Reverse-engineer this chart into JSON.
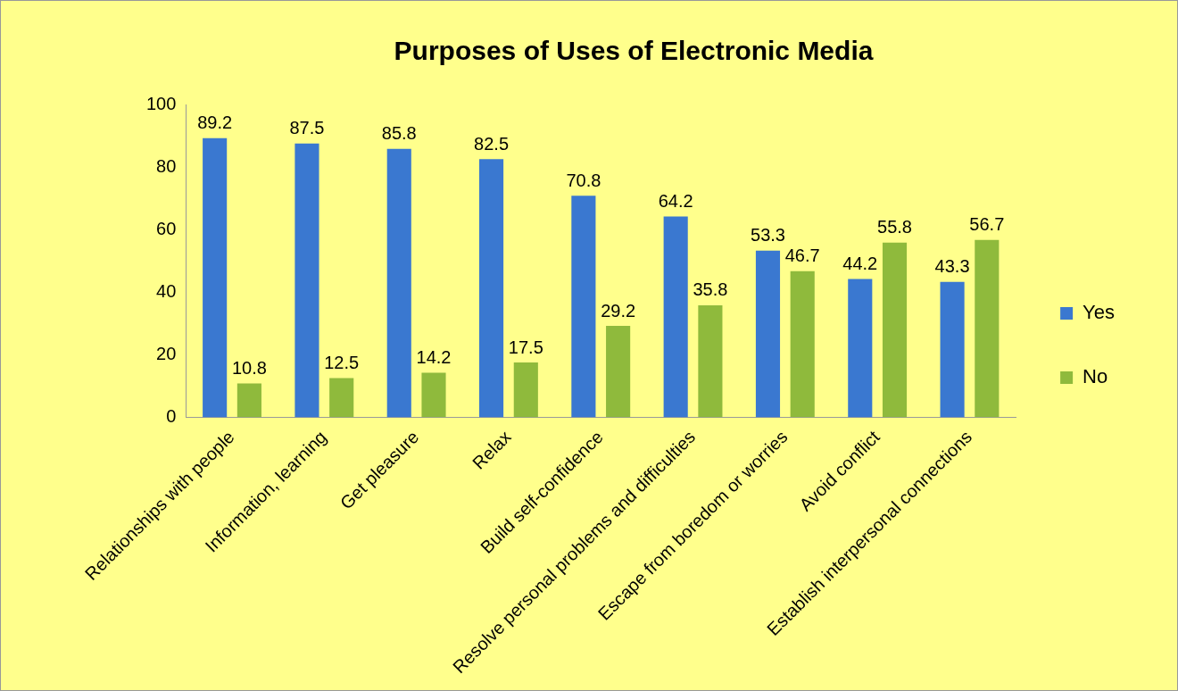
{
  "chart_data": {
    "type": "bar",
    "title": "Purposes of Uses of Electronic Media",
    "categories": [
      "Relationships with people",
      "Information, learning",
      "Get pleasure",
      "Relax",
      "Build self-confidence",
      "Resolve personal problems and difficulties",
      "Escape from boredom or worries",
      "Avoid conflict",
      "Establish interpersonal connections"
    ],
    "series": [
      {
        "name": "Yes",
        "color": "#3a78d0",
        "values": [
          89.2,
          87.5,
          85.8,
          82.5,
          70.8,
          64.2,
          53.3,
          44.2,
          43.3
        ]
      },
      {
        "name": "No",
        "color": "#8fba3c",
        "values": [
          10.8,
          12.5,
          14.2,
          17.5,
          29.2,
          35.8,
          46.7,
          55.8,
          56.7
        ]
      }
    ],
    "ylim": [
      0,
      100
    ],
    "yticks": [
      0,
      20,
      40,
      60,
      80,
      100
    ],
    "grid": false,
    "legend": "right",
    "data_labels": true
  }
}
